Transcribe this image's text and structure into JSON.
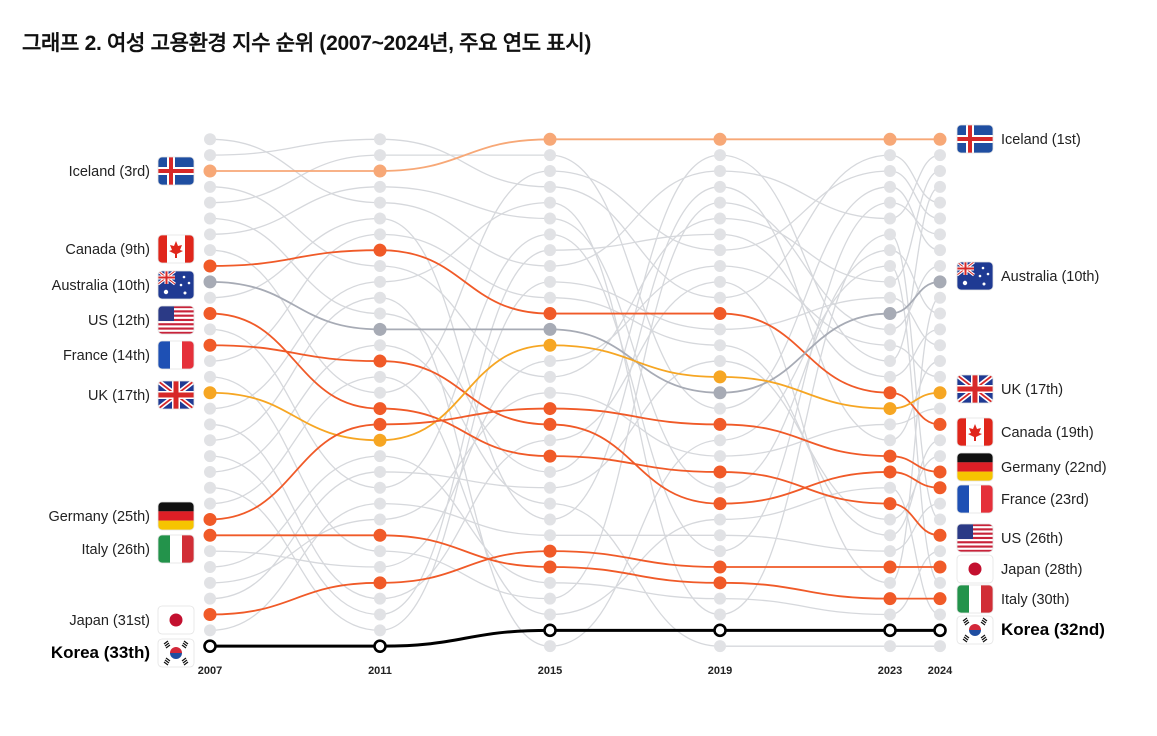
{
  "title": "그래프 2. 여성 고용환경 지수 순위 (2007~2024년, 주요 연도 표시)",
  "chart_data": {
    "type": "bump",
    "title": "그래프 2. 여성 고용환경 지수 순위 (2007~2024년, 주요 연도 표시)",
    "x": [
      "2007",
      "2011",
      "2015",
      "2019",
      "2023",
      "2024"
    ],
    "rank_range": [
      1,
      33
    ],
    "y_inverted": true,
    "grid": false,
    "colors": {
      "highlight": "#f05a28",
      "iceland": "#f7a877",
      "australia": "#a7abb5",
      "uk": "#f6a623",
      "korea": "#000000",
      "other_line": "#d6d8dc",
      "other_dot": "#e1e2e5"
    },
    "series": [
      {
        "name": "Iceland",
        "flag": "iceland-flag",
        "ranks": [
          3,
          3,
          1,
          1,
          1,
          1
        ],
        "left_label": "Iceland (3rd)",
        "right_label": "Iceland (1st)",
        "color": "#f7a877"
      },
      {
        "name": "Canada",
        "flag": "canada-flag",
        "ranks": [
          9,
          8,
          12,
          12,
          17,
          19
        ],
        "left_label": "Canada (9th)",
        "right_label": "Canada (19th)",
        "color": "#f05a28"
      },
      {
        "name": "Australia",
        "flag": "australia-flag",
        "ranks": [
          10,
          13,
          13,
          17,
          12,
          10
        ],
        "left_label": "Australia (10th)",
        "right_label": "Australia (10th)",
        "color": "#a7abb5"
      },
      {
        "name": "US",
        "flag": "us-flag",
        "ranks": [
          12,
          18,
          21,
          22,
          24,
          26
        ],
        "left_label": "US (12th)",
        "right_label": "US (26th)",
        "color": "#f05a28"
      },
      {
        "name": "France",
        "flag": "france-flag",
        "ranks": [
          14,
          15,
          19,
          24,
          22,
          23
        ],
        "left_label": "France (14th)",
        "right_label": "France (23rd)",
        "color": "#f05a28"
      },
      {
        "name": "UK",
        "flag": "uk-flag",
        "ranks": [
          17,
          20,
          14,
          16,
          18,
          17
        ],
        "left_label": "UK (17th)",
        "right_label": "UK (17th)",
        "color": "#f6a623"
      },
      {
        "name": "Germany",
        "flag": "germany-flag",
        "ranks": [
          25,
          19,
          18,
          19,
          21,
          22
        ],
        "left_label": "Germany (25th)",
        "right_label": "Germany (22nd)",
        "color": "#f05a28"
      },
      {
        "name": "Italy",
        "flag": "italy-flag",
        "ranks": [
          26,
          26,
          28,
          29,
          30,
          30
        ],
        "left_label": "Italy (26th)",
        "right_label": "Italy (30th)",
        "color": "#f05a28"
      },
      {
        "name": "Japan",
        "flag": "japan-flag",
        "ranks": [
          31,
          29,
          27,
          28,
          28,
          28
        ],
        "left_label": "Japan (31st)",
        "right_label": "Japan (28th)",
        "color": "#f05a28"
      },
      {
        "name": "Korea",
        "flag": "korea-flag",
        "ranks": [
          33,
          33,
          32,
          32,
          32,
          32
        ],
        "left_label": "Korea (33th)",
        "right_label": "Korea (32nd)",
        "color": "#000000",
        "bold": true
      }
    ]
  }
}
